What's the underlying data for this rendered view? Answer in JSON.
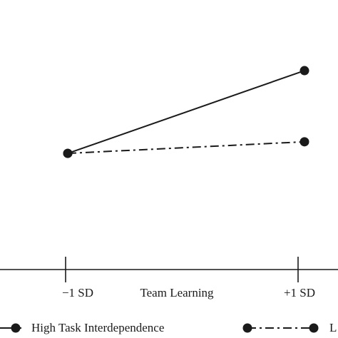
{
  "chart_data": {
    "type": "line",
    "x_label": "Team Learning",
    "categories": [
      "−1 SD",
      "+1 SD"
    ],
    "series": [
      {
        "name": "High Task Interdependence",
        "color": "#1a1a1a",
        "line_style": "solid",
        "values": [
          4.31,
          7.38
        ]
      },
      {
        "name": "L",
        "color": "#1a1a1a",
        "line_style": "dashdot",
        "values": [
          4.31,
          4.74
        ]
      }
    ],
    "ylim": [
      0,
      10
    ]
  }
}
